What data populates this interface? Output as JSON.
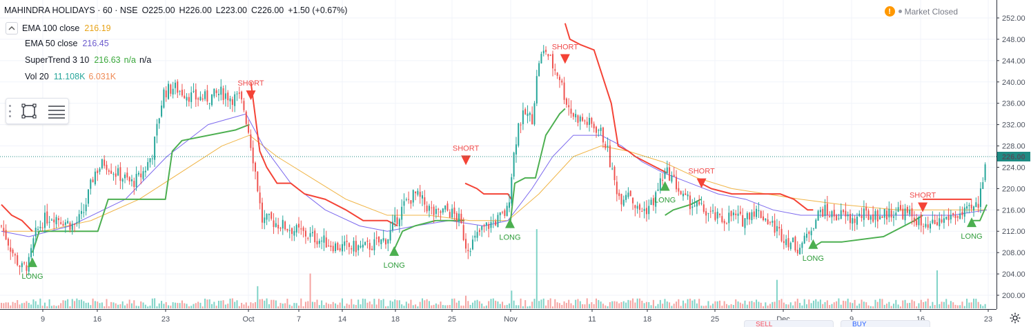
{
  "header": {
    "symbol": "MAHINDRA HOLIDAYS · 60 · NSE",
    "open_label": "O",
    "open": "225.00",
    "high_label": "H",
    "high": "226.00",
    "low_label": "L",
    "low": "223.00",
    "close_label": "C",
    "close": "226.00",
    "change": "+1.50 (+0.67%)"
  },
  "indicators": [
    {
      "name": "EMA 100 close",
      "values": [
        "216.19"
      ],
      "colors": [
        "#e8a317"
      ]
    },
    {
      "name": "EMA 50 close",
      "values": [
        "216.45"
      ],
      "colors": [
        "#6a5acd"
      ]
    },
    {
      "name": "SuperTrend 3 10",
      "values": [
        "216.63",
        "n/a",
        "n/a"
      ],
      "colors": [
        "#3aa83a",
        "#3aa83a",
        "#131722"
      ]
    },
    {
      "name": "Vol 20",
      "values": [
        "11.108K",
        "6.031K"
      ],
      "colors": [
        "#26a69a",
        "#ef8b56"
      ]
    }
  ],
  "market_status": {
    "label": "Market Closed",
    "alert_glyph": "!"
  },
  "toolbar": {
    "tools": [
      "rectangle-tool-icon",
      "lines-menu-icon"
    ]
  },
  "bottom_tabs": [
    "SELL",
    "BUY"
  ],
  "colors": {
    "up_candle": "#26a69a",
    "down_candle": "#ef5350",
    "supertrend_up": "#4caf50",
    "supertrend_down": "#f44336",
    "ema100": "#f0b445",
    "ema50": "#7b68ee",
    "volume_up": "#7fd3c7",
    "volume_down": "#f5a3a1",
    "last_price_bg": "#1e8b83"
  },
  "chart_data": {
    "type": "candlestick",
    "price_axis": {
      "ticks": [
        "252.00",
        "248.00",
        "244.00",
        "240.00",
        "236.00",
        "232.00",
        "228.00",
        "224.00",
        "220.00",
        "216.00",
        "212.00",
        "208.00",
        "204.00",
        "200.00"
      ],
      "last_price_label": "226.00",
      "range": [
        198.0,
        253.5
      ]
    },
    "time_axis": {
      "ticks": [
        "9",
        "16",
        "23",
        "Oct",
        "7",
        "14",
        "18",
        "25",
        "Nov",
        "11",
        "18",
        "25",
        "Dec",
        "9",
        "16",
        "23"
      ]
    },
    "bar_count": 430,
    "close_anchors": [
      [
        0,
        213
      ],
      [
        10,
        210
      ],
      [
        20,
        207
      ],
      [
        30,
        205
      ],
      [
        40,
        206
      ],
      [
        48,
        211
      ],
      [
        60,
        214
      ],
      [
        75,
        215
      ],
      [
        90,
        214
      ],
      [
        105,
        213
      ],
      [
        118,
        215
      ],
      [
        135,
        223
      ],
      [
        150,
        225
      ],
      [
        165,
        223
      ],
      [
        178,
        222
      ],
      [
        188,
        221
      ],
      [
        200,
        222
      ],
      [
        210,
        224
      ],
      [
        220,
        227
      ],
      [
        235,
        238
      ],
      [
        250,
        239
      ],
      [
        265,
        238
      ],
      [
        280,
        237
      ],
      [
        300,
        237
      ],
      [
        320,
        238
      ],
      [
        335,
        237
      ],
      [
        345,
        237
      ],
      [
        352,
        235
      ],
      [
        360,
        230
      ],
      [
        370,
        222
      ],
      [
        378,
        214
      ],
      [
        390,
        214
      ],
      [
        410,
        213
      ],
      [
        430,
        212
      ],
      [
        450,
        211
      ],
      [
        470,
        210
      ],
      [
        490,
        209
      ],
      [
        510,
        209
      ],
      [
        530,
        209
      ],
      [
        550,
        210
      ],
      [
        562,
        211
      ],
      [
        572,
        214
      ],
      [
        585,
        217
      ],
      [
        600,
        219
      ],
      [
        615,
        217
      ],
      [
        630,
        215
      ],
      [
        645,
        216
      ],
      [
        658,
        215
      ],
      [
        665,
        214
      ],
      [
        675,
        209
      ],
      [
        685,
        210
      ],
      [
        695,
        212
      ],
      [
        705,
        213
      ],
      [
        718,
        214
      ],
      [
        728,
        215
      ],
      [
        735,
        216
      ],
      [
        742,
        225
      ],
      [
        750,
        232
      ],
      [
        760,
        234
      ],
      [
        770,
        233
      ],
      [
        780,
        244
      ],
      [
        790,
        246
      ],
      [
        800,
        243
      ],
      [
        810,
        241
      ],
      [
        818,
        237
      ],
      [
        828,
        234
      ],
      [
        840,
        233
      ],
      [
        855,
        232
      ],
      [
        868,
        231
      ],
      [
        878,
        228
      ],
      [
        888,
        222
      ],
      [
        898,
        218
      ],
      [
        910,
        220
      ],
      [
        922,
        216
      ],
      [
        935,
        216
      ],
      [
        948,
        218
      ],
      [
        958,
        222
      ],
      [
        968,
        223
      ],
      [
        978,
        221
      ],
      [
        990,
        218
      ],
      [
        1005,
        217
      ],
      [
        1018,
        216
      ],
      [
        1030,
        215
      ],
      [
        1045,
        214
      ],
      [
        1060,
        215
      ],
      [
        1075,
        214
      ],
      [
        1090,
        216
      ],
      [
        1105,
        215
      ],
      [
        1120,
        213
      ],
      [
        1135,
        211
      ],
      [
        1145,
        210
      ],
      [
        1155,
        209
      ],
      [
        1165,
        210
      ],
      [
        1175,
        213
      ],
      [
        1190,
        216
      ],
      [
        1205,
        215
      ],
      [
        1220,
        215
      ],
      [
        1235,
        214
      ],
      [
        1250,
        215
      ],
      [
        1265,
        215
      ],
      [
        1280,
        215
      ],
      [
        1300,
        216
      ],
      [
        1318,
        215
      ],
      [
        1330,
        214
      ],
      [
        1340,
        212
      ],
      [
        1350,
        213
      ],
      [
        1365,
        214
      ],
      [
        1380,
        215
      ],
      [
        1395,
        215
      ],
      [
        1408,
        216
      ],
      [
        1418,
        217
      ],
      [
        1424,
        222
      ],
      [
        1428,
        226
      ]
    ],
    "supertrend": {
      "segments": [
        {
          "trend": "down",
          "points": [
            [
              0,
              217
            ],
            [
              15,
              215
            ],
            [
              30,
              214
            ],
            [
              45,
              212
            ]
          ]
        },
        {
          "trend": "up",
          "points": [
            [
              45,
              208
            ],
            [
              55,
              212
            ],
            [
              140,
              212
            ],
            [
              155,
              218
            ],
            [
              238,
              218
            ],
            [
              248,
              227
            ],
            [
              262,
              229
            ],
            [
              340,
              231
            ],
            [
              360,
              232
            ]
          ]
        },
        {
          "trend": "down",
          "points": [
            [
              362,
              240
            ],
            [
              375,
              227
            ],
            [
              385,
              224
            ],
            [
              400,
              221
            ],
            [
              420,
              221
            ],
            [
              440,
              219
            ],
            [
              470,
              218
            ],
            [
              500,
              216
            ],
            [
              525,
              214
            ],
            [
              560,
              214
            ],
            [
              575,
              213
            ]
          ]
        },
        {
          "trend": "up",
          "points": [
            [
              568,
              208
            ],
            [
              582,
              212
            ],
            [
              600,
              213
            ],
            [
              630,
              214
            ],
            [
              672,
              214
            ]
          ]
        },
        {
          "trend": "down",
          "points": [
            [
              673,
              221
            ],
            [
              690,
              220
            ],
            [
              700,
              219
            ],
            [
              735,
              219
            ],
            [
              740,
              218
            ]
          ]
        },
        {
          "trend": "up",
          "points": [
            [
              738,
              213
            ],
            [
              745,
              221
            ],
            [
              760,
              222
            ],
            [
              775,
              222
            ],
            [
              790,
              230
            ],
            [
              800,
              232
            ],
            [
              810,
              234
            ],
            [
              818,
              235
            ]
          ]
        },
        {
          "trend": "down",
          "points": [
            [
              818,
              251
            ],
            [
              825,
              248
            ],
            [
              840,
              247
            ],
            [
              860,
              246
            ],
            [
              870,
              242
            ],
            [
              885,
              236
            ],
            [
              895,
              228
            ],
            [
              910,
              227
            ],
            [
              920,
              226
            ],
            [
              935,
              225
            ],
            [
              950,
              224
            ],
            [
              965,
              223
            ]
          ]
        },
        {
          "trend": "up",
          "points": [
            [
              963,
              215
            ],
            [
              975,
              216
            ],
            [
              1000,
              217
            ],
            [
              1015,
              218
            ]
          ]
        },
        {
          "trend": "down",
          "points": [
            [
              1015,
              221
            ],
            [
              1030,
              220
            ],
            [
              1060,
              219
            ],
            [
              1100,
              219
            ],
            [
              1130,
              219
            ],
            [
              1150,
              218
            ],
            [
              1170,
              216
            ],
            [
              1178,
              216
            ]
          ]
        },
        {
          "trend": "up",
          "points": [
            [
              1178,
              209
            ],
            [
              1190,
              210
            ],
            [
              1220,
              210
            ],
            [
              1280,
              211
            ],
            [
              1325,
              214
            ],
            [
              1337,
              215
            ]
          ]
        },
        {
          "trend": "down",
          "points": [
            [
              1337,
              218
            ],
            [
              1360,
              218
            ],
            [
              1390,
              218
            ],
            [
              1408,
              218
            ]
          ]
        },
        {
          "trend": "up",
          "points": [
            [
              1408,
              214
            ],
            [
              1420,
              214
            ],
            [
              1430,
              217
            ]
          ]
        }
      ]
    },
    "ema50_anchors": [
      [
        0,
        212
      ],
      [
        40,
        211
      ],
      [
        100,
        213
      ],
      [
        180,
        218
      ],
      [
        240,
        226
      ],
      [
        300,
        232
      ],
      [
        355,
        234
      ],
      [
        380,
        228
      ],
      [
        420,
        221
      ],
      [
        470,
        216
      ],
      [
        520,
        213
      ],
      [
        560,
        212
      ],
      [
        600,
        213
      ],
      [
        650,
        214
      ],
      [
        700,
        213
      ],
      [
        735,
        214
      ],
      [
        770,
        220
      ],
      [
        800,
        226
      ],
      [
        830,
        230
      ],
      [
        870,
        230
      ],
      [
        900,
        228
      ],
      [
        930,
        225
      ],
      [
        960,
        223
      ],
      [
        1000,
        221
      ],
      [
        1040,
        219
      ],
      [
        1080,
        218
      ],
      [
        1120,
        216
      ],
      [
        1160,
        215
      ],
      [
        1200,
        215
      ],
      [
        1280,
        215
      ],
      [
        1340,
        215
      ],
      [
        1380,
        215
      ],
      [
        1430,
        216
      ]
    ],
    "ema100_anchors": [
      [
        0,
        212
      ],
      [
        60,
        212
      ],
      [
        130,
        214
      ],
      [
        200,
        218
      ],
      [
        260,
        223
      ],
      [
        320,
        228
      ],
      [
        360,
        230
      ],
      [
        400,
        226
      ],
      [
        450,
        222
      ],
      [
        500,
        218
      ],
      [
        560,
        215
      ],
      [
        620,
        215
      ],
      [
        680,
        214
      ],
      [
        735,
        214
      ],
      [
        780,
        219
      ],
      [
        830,
        226
      ],
      [
        870,
        228
      ],
      [
        910,
        227
      ],
      [
        960,
        225
      ],
      [
        1010,
        222
      ],
      [
        1060,
        220
      ],
      [
        1110,
        219
      ],
      [
        1160,
        218
      ],
      [
        1220,
        217
      ],
      [
        1300,
        216
      ],
      [
        1360,
        216
      ],
      [
        1430,
        216
      ]
    ],
    "signals": [
      {
        "type": "LONG",
        "bar": 45,
        "price": 206.2
      },
      {
        "type": "SHORT",
        "bar": 362,
        "price": 237.5
      },
      {
        "type": "LONG",
        "bar": 570,
        "price": 208.3
      },
      {
        "type": "SHORT",
        "bar": 674,
        "price": 225.3
      },
      {
        "type": "LONG",
        "bar": 738,
        "price": 213.5
      },
      {
        "type": "SHORT",
        "bar": 818,
        "price": 244.3
      },
      {
        "type": "LONG",
        "bar": 963,
        "price": 220.5
      },
      {
        "type": "SHORT",
        "bar": 1016,
        "price": 221.0
      },
      {
        "type": "LONG",
        "bar": 1178,
        "price": 209.6
      },
      {
        "type": "SHORT",
        "bar": 1337,
        "price": 216.5
      },
      {
        "type": "LONG",
        "bar": 1408,
        "price": 213.7
      }
    ],
    "volume_spikes": [
      {
        "bar": 372,
        "value": 3.5,
        "up": true
      },
      {
        "bar": 447,
        "value": 5.5,
        "up": false
      },
      {
        "bar": 673,
        "value": 2.0,
        "up": false
      },
      {
        "bar": 740,
        "value": 2.8,
        "up": true
      },
      {
        "bar": 778,
        "value": 12.5,
        "up": true
      },
      {
        "bar": 1125,
        "value": 4.5,
        "up": true
      },
      {
        "bar": 1357,
        "value": 6.0,
        "up": true
      }
    ],
    "volume_max": 16
  }
}
